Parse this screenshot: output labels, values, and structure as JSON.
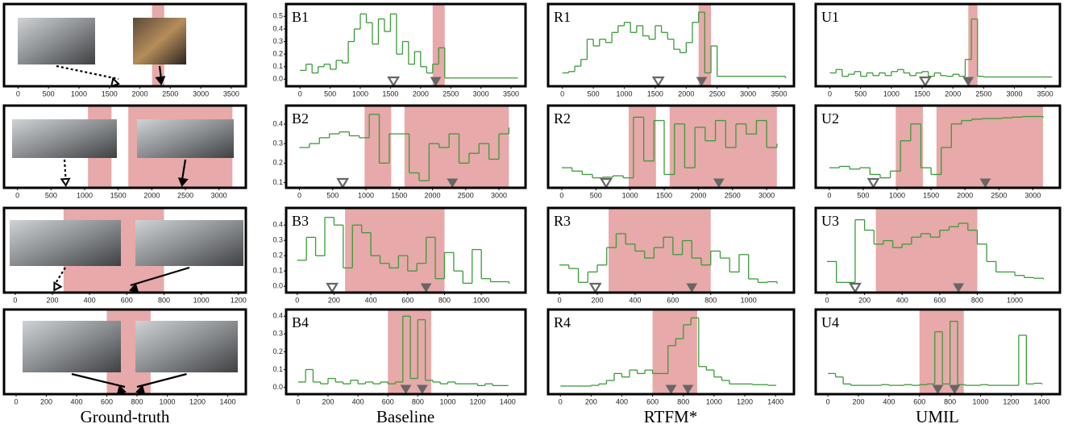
{
  "column_titles": [
    "Ground-truth",
    "Baseline",
    "RTFM*",
    "UMIL"
  ],
  "chart_data": [
    {
      "type": "timeline",
      "xlim": [
        -230,
        3740
      ],
      "xticks": [
        0,
        500,
        1000,
        1500,
        2000,
        2500,
        3000,
        3500
      ],
      "shaded": [
        [
          2200,
          2400
        ]
      ],
      "shade_color": "#e7a9a9",
      "normal_frames": [
        1650
      ],
      "anomaly_frames": [
        2350
      ]
    },
    {
      "type": "step",
      "label": "B1",
      "xlim": [
        -230,
        3740
      ],
      "xticks": [
        0,
        500,
        1000,
        1500,
        2000,
        2500,
        3000,
        3500
      ],
      "ylim": [
        -0.03,
        0.56
      ],
      "yticks": [
        {
          "value": 0,
          "label": "0.0"
        },
        0.1,
        0.2,
        0.3,
        0.4,
        0.5
      ],
      "shaded": [
        [
          2200,
          2400
        ]
      ],
      "shade_color": "#e7a9a9",
      "color": "#3a9b3a",
      "normal_frames": [
        1550
      ],
      "anomaly_frames": [
        2250
      ],
      "x": [
        0,
        100,
        200,
        300,
        400,
        500,
        600,
        700,
        800,
        900,
        1000,
        1100,
        1200,
        1300,
        1400,
        1500,
        1600,
        1700,
        1800,
        1900,
        2000,
        2100,
        2200,
        2300,
        2400,
        2500,
        3600
      ],
      "values": [
        0.07,
        0.12,
        0.05,
        0.1,
        0.12,
        0.08,
        0.15,
        0.13,
        0.3,
        0.4,
        0.52,
        0.45,
        0.28,
        0.48,
        0.38,
        0.52,
        0.2,
        0.3,
        0.12,
        0.22,
        0.1,
        0.05,
        0.12,
        0.25,
        0.01,
        0.01,
        0.01
      ]
    },
    {
      "type": "step",
      "label": "R1",
      "xlim": [
        -230,
        3740
      ],
      "xticks": [
        0,
        500,
        1000,
        1500,
        2000,
        2500,
        3000,
        3500
      ],
      "ylim": [
        -0.05,
        1.05
      ],
      "shaded": [
        [
          2200,
          2400
        ]
      ],
      "shade_color": "#e7a9a9",
      "color": "#3a9b3a",
      "normal_frames": [
        1550
      ],
      "anomaly_frames": [
        2250
      ],
      "x": [
        0,
        100,
        200,
        300,
        400,
        500,
        600,
        700,
        800,
        900,
        1000,
        1100,
        1200,
        1300,
        1400,
        1500,
        1600,
        1700,
        1800,
        1900,
        2000,
        2100,
        2200,
        2300,
        2400,
        2500,
        3600
      ],
      "values": [
        0.1,
        0.12,
        0.2,
        0.3,
        0.6,
        0.5,
        0.6,
        0.55,
        0.7,
        0.8,
        0.85,
        0.7,
        0.8,
        0.65,
        0.6,
        0.8,
        0.7,
        0.6,
        0.45,
        0.4,
        0.55,
        0.85,
        1.0,
        0.1,
        0.5,
        0.05,
        0.03
      ]
    },
    {
      "type": "step",
      "label": "U1",
      "xlim": [
        -230,
        3740
      ],
      "xticks": [
        0,
        500,
        1000,
        1500,
        2000,
        2500,
        3000,
        3500
      ],
      "ylim": [
        -0.05,
        1.05
      ],
      "shaded": [
        [
          2250,
          2400
        ]
      ],
      "shade_color": "#e7a9a9",
      "color": "#3a9b3a",
      "normal_frames": [
        1550
      ],
      "anomaly_frames": [
        2250
      ],
      "x": [
        0,
        100,
        200,
        300,
        400,
        500,
        600,
        700,
        800,
        900,
        1000,
        1100,
        1200,
        1300,
        1400,
        1500,
        1600,
        1700,
        1800,
        1900,
        2000,
        2100,
        2200,
        2300,
        2400,
        2500,
        3600
      ],
      "values": [
        0.1,
        0.15,
        0.05,
        0.08,
        0.12,
        0.05,
        0.1,
        0.06,
        0.1,
        0.06,
        0.12,
        0.15,
        0.1,
        0.06,
        0.1,
        0.12,
        0.05,
        0.1,
        0.06,
        0.05,
        0.08,
        0.05,
        0.3,
        0.9,
        0.05,
        0.04,
        0.04
      ]
    },
    {
      "type": "timeline",
      "xlim": [
        -200,
        3400
      ],
      "xticks": [
        0,
        500,
        1000,
        1500,
        2000,
        2500,
        3000
      ],
      "shaded": [
        [
          1050,
          1400
        ],
        [
          1650,
          3200
        ]
      ],
      "shade_color": "#e7a9a9",
      "normal_frames": [
        720
      ],
      "anomaly_frames": [
        2450
      ]
    },
    {
      "type": "step",
      "label": "B2",
      "xlim": [
        -200,
        3400
      ],
      "xticks": [
        0,
        500,
        1000,
        1500,
        2000,
        2500,
        3000
      ],
      "ylim": [
        0.09,
        0.47
      ],
      "yticks": [
        0.1,
        0.2,
        0.3,
        0.4
      ],
      "shaded": [
        [
          980,
          1380
        ],
        [
          1580,
          3150
        ]
      ],
      "shade_color": "#e7a9a9",
      "color": "#3a9b3a",
      "normal_frames": [
        650
      ],
      "anomaly_frames": [
        2300
      ],
      "x": [
        0,
        150,
        300,
        450,
        600,
        750,
        900,
        1050,
        1200,
        1350,
        1500,
        1650,
        1800,
        1950,
        2100,
        2250,
        2400,
        2550,
        2700,
        2850,
        3000,
        3150
      ],
      "values": [
        0.28,
        0.3,
        0.33,
        0.35,
        0.36,
        0.34,
        0.33,
        0.45,
        0.2,
        0.35,
        0.35,
        0.15,
        0.11,
        0.3,
        0.28,
        0.35,
        0.2,
        0.25,
        0.3,
        0.22,
        0.35,
        0.38
      ]
    },
    {
      "type": "step",
      "label": "R2",
      "xlim": [
        -200,
        3400
      ],
      "xticks": [
        0,
        500,
        1000,
        1500,
        2000,
        2500,
        3000
      ],
      "ylim": [
        -0.05,
        1.05
      ],
      "shaded": [
        [
          980,
          1380
        ],
        [
          1580,
          3150
        ]
      ],
      "shade_color": "#e7a9a9",
      "color": "#3a9b3a",
      "normal_frames": [
        650
      ],
      "anomaly_frames": [
        2300
      ],
      "x": [
        0,
        150,
        300,
        450,
        600,
        750,
        900,
        1050,
        1200,
        1350,
        1500,
        1650,
        1800,
        1950,
        2100,
        2250,
        2400,
        2550,
        2700,
        2850,
        3000,
        3150
      ],
      "values": [
        0.2,
        0.15,
        0.1,
        0.05,
        0.06,
        0.08,
        0.05,
        0.95,
        0.3,
        0.9,
        0.1,
        0.85,
        0.2,
        0.8,
        0.6,
        0.9,
        0.5,
        0.85,
        0.7,
        0.9,
        0.5,
        0.55
      ]
    },
    {
      "type": "step",
      "label": "U2",
      "xlim": [
        -200,
        3400
      ],
      "xticks": [
        0,
        500,
        1000,
        1500,
        2000,
        2500,
        3000
      ],
      "ylim": [
        -0.05,
        1.05
      ],
      "shaded": [
        [
          980,
          1380
        ],
        [
          1580,
          3150
        ]
      ],
      "shade_color": "#e7a9a9",
      "color": "#3a9b3a",
      "normal_frames": [
        650
      ],
      "anomaly_frames": [
        2300
      ],
      "x": [
        0,
        150,
        300,
        450,
        600,
        750,
        900,
        1050,
        1200,
        1350,
        1500,
        1650,
        1800,
        1950,
        2100,
        2250,
        2400,
        2550,
        2700,
        2850,
        3000,
        3150
      ],
      "values": [
        0.2,
        0.22,
        0.18,
        0.2,
        0.1,
        0.05,
        0.15,
        0.6,
        0.85,
        0.2,
        0.1,
        0.5,
        0.85,
        0.9,
        0.92,
        0.93,
        0.93,
        0.94,
        0.95,
        0.96,
        0.96,
        0.95
      ]
    },
    {
      "type": "timeline",
      "xlim": [
        -60,
        1240
      ],
      "xticks": [
        0,
        200,
        400,
        600,
        800,
        1000,
        1200
      ],
      "shaded": [
        [
          260,
          800
        ]
      ],
      "shade_color": "#e7a9a9",
      "normal_frames": [
        210
      ],
      "anomaly_frames": [
        620
      ]
    },
    {
      "type": "step",
      "label": "B3",
      "xlim": [
        -60,
        1240
      ],
      "xticks": [
        0,
        200,
        400,
        600,
        800,
        1000
      ],
      "ylim": [
        -0.02,
        0.48
      ],
      "yticks": [
        {
          "value": 0,
          "label": "0.0"
        },
        0.1,
        0.2,
        0.3,
        0.4
      ],
      "shaded": [
        [
          260,
          800
        ]
      ],
      "shade_color": "#e7a9a9",
      "color": "#3a9b3a",
      "normal_frames": [
        190
      ],
      "anomaly_frames": [
        700
      ],
      "x": [
        0,
        50,
        100,
        150,
        200,
        250,
        300,
        350,
        400,
        450,
        500,
        550,
        600,
        650,
        700,
        750,
        800,
        850,
        900,
        950,
        1000,
        1050,
        1100,
        1150
      ],
      "values": [
        0.17,
        0.32,
        0.2,
        0.45,
        0.4,
        0.12,
        0.4,
        0.35,
        0.2,
        0.15,
        0.12,
        0.2,
        0.1,
        0.15,
        0.32,
        0.05,
        0.22,
        0.1,
        0.02,
        0.24,
        0.05,
        0.03,
        0.03,
        0.02
      ]
    },
    {
      "type": "step",
      "label": "R3",
      "xlim": [
        -60,
        1240
      ],
      "xticks": [
        0,
        200,
        400,
        600,
        800,
        1000
      ],
      "ylim": [
        -0.05,
        1.05
      ],
      "shaded": [
        [
          260,
          800
        ]
      ],
      "shade_color": "#e7a9a9",
      "color": "#3a9b3a",
      "normal_frames": [
        190
      ],
      "anomaly_frames": [
        700
      ],
      "x": [
        0,
        50,
        100,
        150,
        200,
        250,
        300,
        350,
        400,
        450,
        500,
        550,
        600,
        650,
        700,
        750,
        800,
        850,
        900,
        950,
        1000,
        1050,
        1100,
        1150
      ],
      "values": [
        0.3,
        0.25,
        0.05,
        0.2,
        0.3,
        0.55,
        0.75,
        0.6,
        0.5,
        0.4,
        0.55,
        0.7,
        0.45,
        0.65,
        0.4,
        0.3,
        0.5,
        0.4,
        0.2,
        0.45,
        0.1,
        0.05,
        0.06,
        0.04
      ]
    },
    {
      "type": "step",
      "label": "U3",
      "xlim": [
        -60,
        1240
      ],
      "xticks": [
        0,
        200,
        400,
        600,
        800,
        1000
      ],
      "ylim": [
        -0.05,
        1.05
      ],
      "shaded": [
        [
          260,
          800
        ]
      ],
      "shade_color": "#e7a9a9",
      "color": "#3a9b3a",
      "normal_frames": [
        150
      ],
      "anomaly_frames": [
        700
      ],
      "x": [
        0,
        50,
        100,
        150,
        200,
        250,
        300,
        350,
        400,
        450,
        500,
        550,
        600,
        650,
        700,
        750,
        800,
        850,
        900,
        950,
        1000,
        1050,
        1100,
        1150
      ],
      "values": [
        0.35,
        0.05,
        0.05,
        0.95,
        0.8,
        0.6,
        0.65,
        0.55,
        0.6,
        0.7,
        0.75,
        0.7,
        0.8,
        0.85,
        0.9,
        0.8,
        0.6,
        0.35,
        0.2,
        0.2,
        0.15,
        0.12,
        0.11,
        0.1
      ]
    },
    {
      "type": "timeline",
      "xlim": [
        -80,
        1520
      ],
      "xticks": [
        0,
        200,
        400,
        600,
        800,
        1000,
        1200,
        1400
      ],
      "shaded": [
        [
          600,
          890
        ]
      ],
      "shade_color": "#e7a9a9",
      "normal_frames": [],
      "anomaly_frames": [
        720,
        800
      ]
    },
    {
      "type": "step",
      "label": "B4",
      "xlim": [
        -80,
        1520
      ],
      "xticks": [
        0,
        200,
        400,
        600,
        800,
        1000,
        1200,
        1400
      ],
      "ylim": [
        -0.02,
        0.41
      ],
      "yticks": [
        {
          "value": 0,
          "label": "0.0"
        },
        0.1,
        0.2,
        0.3,
        0.4
      ],
      "shaded": [
        [
          600,
          890
        ]
      ],
      "shade_color": "#e7a9a9",
      "color": "#3a9b3a",
      "normal_frames": [],
      "anomaly_frames": [
        720,
        830
      ],
      "x": [
        0,
        50,
        100,
        150,
        200,
        250,
        300,
        350,
        400,
        450,
        500,
        550,
        600,
        650,
        700,
        750,
        800,
        850,
        900,
        950,
        1000,
        1050,
        1100,
        1150,
        1200,
        1250,
        1300,
        1350,
        1400
      ],
      "values": [
        0.03,
        0.1,
        0.03,
        0.02,
        0.05,
        0.03,
        0.02,
        0.04,
        0.02,
        0.03,
        0.02,
        0.03,
        0.02,
        0.03,
        0.4,
        0.05,
        0.38,
        0.04,
        0.03,
        0.02,
        0.03,
        0.02,
        0.02,
        0.02,
        0.01,
        0.02,
        0.01,
        0.01,
        0.01
      ]
    },
    {
      "type": "step",
      "label": "R4",
      "xlim": [
        -80,
        1520
      ],
      "xticks": [
        0,
        200,
        400,
        600,
        800,
        1000,
        1200,
        1400
      ],
      "ylim": [
        -0.05,
        1.05
      ],
      "shaded": [
        [
          600,
          890
        ]
      ],
      "shade_color": "#e7a9a9",
      "color": "#3a9b3a",
      "normal_frames": [],
      "anomaly_frames": [
        720,
        830
      ],
      "x": [
        0,
        50,
        100,
        150,
        200,
        250,
        300,
        350,
        400,
        450,
        500,
        550,
        600,
        650,
        700,
        750,
        800,
        850,
        900,
        950,
        1000,
        1050,
        1100,
        1150,
        1200,
        1250,
        1300,
        1350,
        1400
      ],
      "values": [
        0.02,
        0.02,
        0.02,
        0.02,
        0.03,
        0.05,
        0.1,
        0.2,
        0.15,
        0.25,
        0.2,
        0.25,
        0.2,
        0.2,
        0.6,
        0.7,
        0.9,
        1.0,
        0.3,
        0.25,
        0.15,
        0.1,
        0.05,
        0.05,
        0.05,
        0.04,
        0.04,
        0.03,
        0.03
      ]
    },
    {
      "type": "step",
      "label": "U4",
      "xlim": [
        -80,
        1520
      ],
      "xticks": [
        0,
        200,
        400,
        600,
        800,
        1000,
        1200,
        1400
      ],
      "ylim": [
        -0.05,
        1.05
      ],
      "shaded": [
        [
          600,
          890
        ]
      ],
      "shade_color": "#e7a9a9",
      "color": "#3a9b3a",
      "normal_frames": [],
      "anomaly_frames": [
        720,
        830
      ],
      "x": [
        0,
        50,
        100,
        150,
        200,
        250,
        300,
        350,
        400,
        450,
        500,
        550,
        600,
        650,
        700,
        750,
        800,
        850,
        900,
        950,
        1000,
        1050,
        1100,
        1150,
        1200,
        1250,
        1300,
        1350,
        1400
      ],
      "values": [
        0.2,
        0.15,
        0.05,
        0.03,
        0.03,
        0.03,
        0.03,
        0.04,
        0.03,
        0.03,
        0.04,
        0.03,
        0.04,
        0.05,
        0.8,
        0.05,
        0.95,
        0.04,
        0.03,
        0.03,
        0.04,
        0.03,
        0.03,
        0.03,
        0.03,
        0.75,
        0.05,
        0.06,
        0.05
      ]
    }
  ]
}
